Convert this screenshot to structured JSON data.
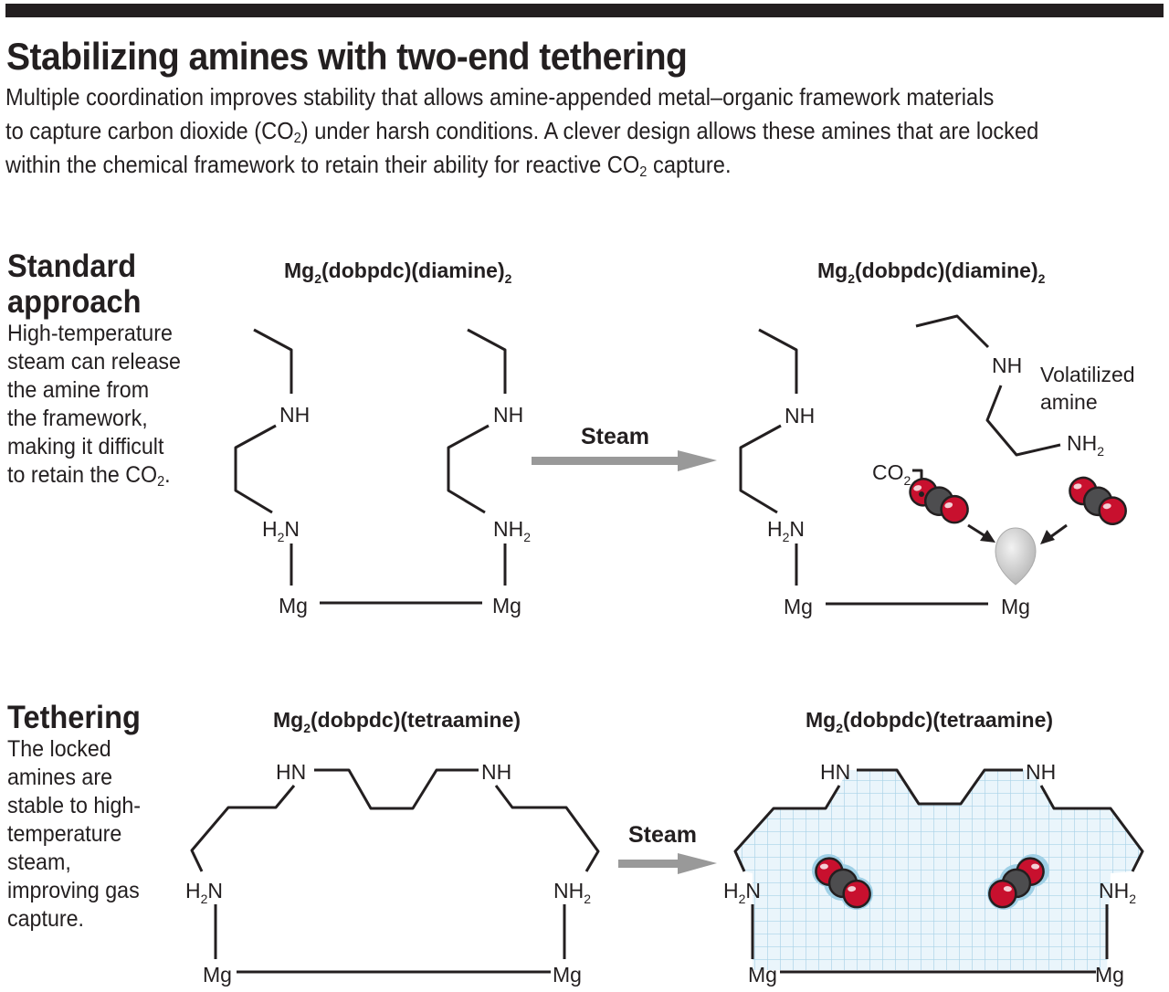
{
  "title": "Stabilizing amines with two-end tethering",
  "lede": {
    "line1": "Multiple coordination improves stability that allows amine-appended metal–organic framework materials",
    "line2_a": "to capture carbon dioxide (CO",
    "line2_sub": "2",
    "line2_b": ") under harsh conditions. A clever design allows these amines that are locked",
    "line3_a": "within the chemical framework to retain their ability for reactive CO",
    "line3_sub": "2",
    "line3_b": " capture."
  },
  "standard": {
    "heading_1": "Standard",
    "heading_2": "approach",
    "text_lines": [
      "High-temperature",
      "steam can release",
      "the amine from",
      "the framework,",
      "making it difficult"
    ],
    "text_last_a": "to retain the CO",
    "text_last_sub": "2",
    "text_last_b": ".",
    "formula_left": {
      "a": "Mg",
      "s1": "2",
      "b": "(dobpdc)(diamine)",
      "s2": "2"
    },
    "formula_right": {
      "a": "Mg",
      "s1": "2",
      "b": "(dobpdc)(diamine)",
      "s2": "2"
    },
    "arrow_label": "Steam",
    "volatilized_1": "Volatilized",
    "volatilized_2": "amine",
    "co2_label": "CO",
    "co2_sub": "2"
  },
  "tethering": {
    "heading": "Tethering",
    "text_lines": [
      "The locked",
      "amines are",
      "stable to high-",
      "temperature",
      "steam,",
      "improving gas",
      "capture."
    ],
    "formula_left": {
      "a": "Mg",
      "s1": "2",
      "b": "(dobpdc)(tetraamine)"
    },
    "formula_right": {
      "a": "Mg",
      "s1": "2",
      "b": "(dobpdc)(tetraamine)"
    },
    "arrow_label": "Steam"
  },
  "atoms": {
    "mg": "Mg",
    "nh": "NH",
    "hn": "HN",
    "h": "H",
    "n": "N",
    "two": "2"
  },
  "colors": {
    "ink": "#231f20",
    "arrow": "#999999",
    "oxygen": "#c8102e",
    "carbon": "#4d4d4f",
    "mesh": "#a9d3e8",
    "mesh_fill": "#eaf5fb"
  }
}
